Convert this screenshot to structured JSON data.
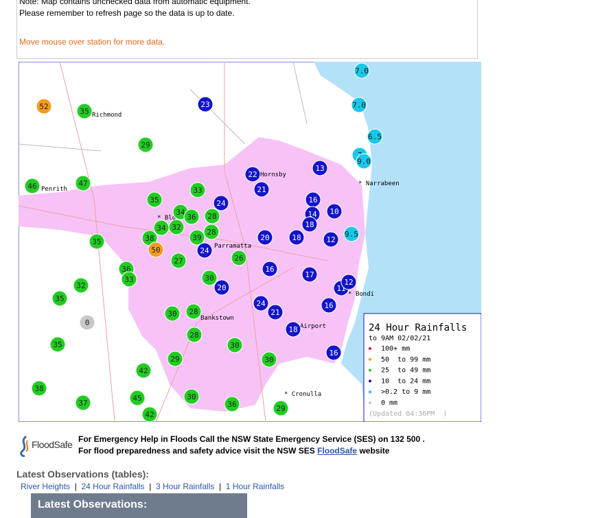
{
  "notes": {
    "line1": "Note: Map contains unchecked data from automatic equipment.",
    "line2": "Please remember to refresh page so the data is up to date.",
    "hint": "Move mouse over station for more data."
  },
  "map": {
    "stations": [
      {
        "value": 52,
        "color": "#f39c1f"
      },
      {
        "value": 35,
        "color": "#22cc22"
      },
      {
        "value": 23,
        "color": "#1414c8"
      },
      {
        "value": 29,
        "color": "#22cc22"
      },
      {
        "value": 7,
        "label": "7.0",
        "color": "#19c8e8"
      },
      {
        "value": 7,
        "label": "7.0",
        "color": "#19c8e8"
      },
      {
        "value": 6.5,
        "color": "#19c8e8"
      },
      {
        "value": 7,
        "color": "#19c8e8"
      },
      {
        "value": 9,
        "label": "9.0",
        "color": "#19c8e8"
      },
      {
        "value": 22,
        "color": "#1414c8"
      },
      {
        "value": 21,
        "color": "#1414c8"
      },
      {
        "value": 13,
        "color": "#1414c8"
      },
      {
        "value": 46,
        "color": "#22cc22"
      },
      {
        "value": 47,
        "color": "#22cc22"
      },
      {
        "value": 33,
        "color": "#22cc22"
      },
      {
        "value": 35,
        "color": "#22cc22"
      },
      {
        "value": 24,
        "color": "#1414c8"
      },
      {
        "value": 16,
        "color": "#1414c8"
      },
      {
        "value": 14,
        "color": "#1414c8"
      },
      {
        "value": 10,
        "color": "#1414c8"
      },
      {
        "value": 34,
        "color": "#22cc22"
      },
      {
        "value": 36,
        "color": "#22cc22"
      },
      {
        "value": 28,
        "color": "#22cc22"
      },
      {
        "value": 18,
        "color": "#1414c8"
      },
      {
        "value": 34,
        "color": "#22cc22"
      },
      {
        "value": 32,
        "color": "#22cc22"
      },
      {
        "value": 28,
        "color": "#22cc22"
      },
      {
        "value": 38,
        "color": "#22cc22"
      },
      {
        "value": 39,
        "color": "#22cc22"
      },
      {
        "value": 20,
        "color": "#1414c8"
      },
      {
        "value": 18,
        "color": "#1414c8"
      },
      {
        "value": 12,
        "color": "#1414c8"
      },
      {
        "value": 9.5,
        "color": "#19c8e8"
      },
      {
        "value": 35,
        "color": "#22cc22"
      },
      {
        "value": 50,
        "color": "#f39c1f"
      },
      {
        "value": 24,
        "color": "#1414c8"
      },
      {
        "value": 26,
        "color": "#22cc22"
      },
      {
        "value": 27,
        "color": "#22cc22"
      },
      {
        "value": 36,
        "color": "#22cc22"
      },
      {
        "value": 33,
        "color": "#22cc22"
      },
      {
        "value": 16,
        "color": "#1414c8"
      },
      {
        "value": 17,
        "color": "#1414c8"
      },
      {
        "value": 32,
        "color": "#22cc22"
      },
      {
        "value": 30,
        "color": "#22cc22"
      },
      {
        "value": 20,
        "color": "#1414c8"
      },
      {
        "value": 11,
        "color": "#1414c8"
      },
      {
        "value": 12,
        "color": "#1414c8"
      },
      {
        "value": 35,
        "color": "#22cc22"
      },
      {
        "value": 24,
        "color": "#1414c8"
      },
      {
        "value": 16,
        "color": "#1414c8"
      },
      {
        "value": 21,
        "color": "#1414c8"
      },
      {
        "value": 0,
        "color": "#c8c8c8"
      },
      {
        "value": 30,
        "color": "#22cc22"
      },
      {
        "value": 28,
        "color": "#22cc22"
      },
      {
        "value": 18,
        "color": "#1414c8"
      },
      {
        "value": 28,
        "color": "#22cc22"
      },
      {
        "value": 30,
        "color": "#22cc22"
      },
      {
        "value": 35,
        "color": "#22cc22"
      },
      {
        "value": 29,
        "color": "#22cc22"
      },
      {
        "value": 30,
        "color": "#22cc22"
      },
      {
        "value": 16,
        "color": "#1414c8"
      },
      {
        "value": 42,
        "color": "#22cc22"
      },
      {
        "value": 38,
        "color": "#22cc22"
      },
      {
        "value": 45,
        "color": "#22cc22"
      },
      {
        "value": 30,
        "color": "#22cc22"
      },
      {
        "value": 37,
        "color": "#22cc22"
      },
      {
        "value": 36,
        "color": "#22cc22"
      },
      {
        "value": 29,
        "color": "#22cc22"
      },
      {
        "value": 42,
        "color": "#22cc22"
      }
    ],
    "places": [
      "Richmond",
      "Hornsby",
      "* Narrabeen",
      "Penrith",
      "* Blo",
      "Parramatta",
      "* Bondi",
      "Bankstown",
      "Airport",
      "* Cronulla"
    ],
    "legend": {
      "title": "24 Hour Rainfalls",
      "subtitle": "to 9AM 02/02/21",
      "items": [
        {
          "label": "100+ mm",
          "color": "#e81010"
        },
        {
          "label": "50  to 99 mm",
          "color": "#f39c1f"
        },
        {
          "label": "25  to 49 mm",
          "color": "#22cc22"
        },
        {
          "label": "10  to 24 mm",
          "color": "#1414c8"
        },
        {
          "label": ">0.2 to 9 mm",
          "color": "#19c8e8"
        },
        {
          "label": "0 mm",
          "color": "#c8c8c8"
        }
      ],
      "updated": "(Updated 04:36PM  )"
    }
  },
  "footer": {
    "logo": "FloodSafe",
    "line1": "For Emergency Help in Floods Call the NSW State Emergency Service (SES) on 132 500 .",
    "line2": "For flood preparedness and safety advice visit the NSW SES ",
    "link": "FloodSafe",
    "line2_end": " website"
  },
  "observations": {
    "heading": "Latest Observations (tables):",
    "links": [
      "River Heights",
      "24 Hour Rainfalls",
      "3 Hour Rainfalls",
      "1 Hour Rainfalls"
    ],
    "bar": "Latest Observations:"
  }
}
